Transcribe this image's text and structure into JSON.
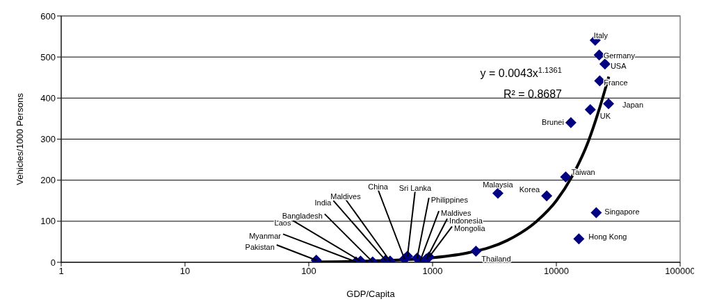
{
  "chart_data": {
    "type": "scatter",
    "xlabel": "GDP/Capita",
    "ylabel": "Vehicles/1000 Persons",
    "log": "x",
    "xlim": [
      1,
      100000
    ],
    "xticks": [
      1,
      10,
      100,
      1000,
      10000,
      100000
    ],
    "ylim": [
      0,
      600
    ],
    "yticks": [
      0,
      100,
      200,
      300,
      400,
      500,
      600
    ],
    "grid": "y",
    "marker": "diamond",
    "series": [
      {
        "color": "#000080",
        "x": [
          115,
          241,
          262,
          328,
          417,
          454,
          593,
          627,
          750,
          793,
          891,
          938,
          2240,
          3370,
          8360,
          11900,
          13100,
          18800,
          26400,
          21000,
          15200,
          20600,
          22200,
          24700,
          22400
        ],
        "values": [
          5,
          1,
          3,
          1,
          5,
          3,
          8,
          15,
          10,
          3,
          8,
          13,
          27,
          168,
          162,
          208,
          340,
          372,
          386,
          121,
          57,
          541,
          505,
          483,
          442
        ]
      },
      {
        "type": "line",
        "marker": "none",
        "color": "#000000",
        "x": [
          115,
          300,
          1000,
          2000,
          4000,
          7000,
          10000,
          14000,
          18000,
          22000,
          26500
        ],
        "values": [
          1,
          3,
          11,
          24,
          53,
          101,
          150,
          220,
          292,
          369,
          452
        ]
      }
    ],
    "annotations": [
      {
        "text": "Pakistan",
        "x": 115,
        "y": 5
      },
      {
        "text": "Myanmar",
        "x": 241,
        "y": 1
      },
      {
        "text": "Laos",
        "x": 262,
        "y": 3
      },
      {
        "text": "Bangladesh",
        "x": 328,
        "y": 1
      },
      {
        "text": "India",
        "x": 417,
        "y": 5
      },
      {
        "text": "Maldives",
        "x": 454,
        "y": 3
      },
      {
        "text": "China",
        "x": 593,
        "y": 8
      },
      {
        "text": "Sri Lanka",
        "x": 627,
        "y": 15
      },
      {
        "text": "Philippines",
        "x": 750,
        "y": 10
      },
      {
        "text": "Maldives",
        "x": 793,
        "y": 3
      },
      {
        "text": "Indonesia",
        "x": 891,
        "y": 8
      },
      {
        "text": "Mongolia",
        "x": 938,
        "y": 13
      },
      {
        "text": "Thailand",
        "x": 2240,
        "y": 27
      },
      {
        "text": "Malaysia",
        "x": 3370,
        "y": 168
      },
      {
        "text": "Korea",
        "x": 8360,
        "y": 162
      },
      {
        "text": "Taiwan",
        "x": 11900,
        "y": 208
      },
      {
        "text": "Brunei",
        "x": 13100,
        "y": 340
      },
      {
        "text": "UK",
        "x": 18800,
        "y": 372
      },
      {
        "text": "Japan",
        "x": 26400,
        "y": 386
      },
      {
        "text": "Singapore",
        "x": 21000,
        "y": 121
      },
      {
        "text": "Hong Kong",
        "x": 15200,
        "y": 57
      },
      {
        "text": "Italy",
        "x": 20600,
        "y": 541
      },
      {
        "text": "Germany",
        "x": 22200,
        "y": 505
      },
      {
        "text": "USA",
        "x": 24700,
        "y": 483
      },
      {
        "text": "France",
        "x": 22400,
        "y": 442
      },
      "y = 0.0043x$^{1.1361}$",
      "R² = 0.8687"
    ]
  }
}
